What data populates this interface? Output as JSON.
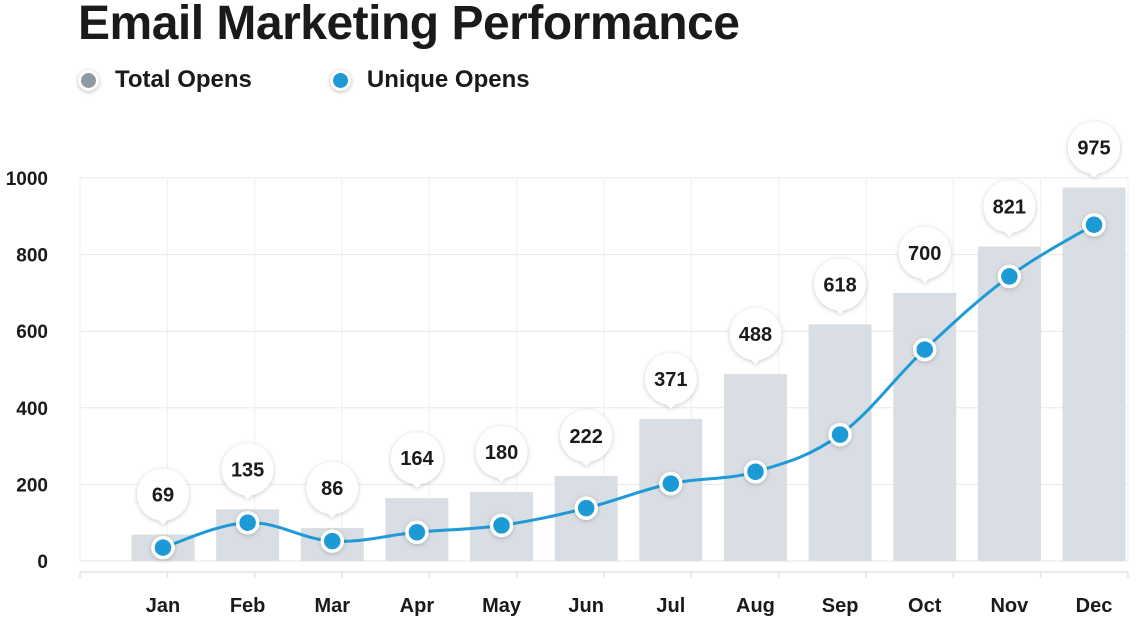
{
  "chart_data": {
    "type": "bar",
    "title": "Email Marketing Performance",
    "categories": [
      "Jan",
      "Feb",
      "Mar",
      "Apr",
      "May",
      "Jun",
      "Jul",
      "Aug",
      "Sep",
      "Oct",
      "Nov",
      "Dec"
    ],
    "series": [
      {
        "name": "Total Opens",
        "type": "bar",
        "color": "#d8dee3",
        "legend_color": "#8e9ba5",
        "values": [
          69,
          135,
          86,
          164,
          180,
          222,
          371,
          488,
          618,
          700,
          821,
          975
        ]
      },
      {
        "name": "Unique Opens",
        "type": "line",
        "color": "#1f9ad6",
        "values": [
          35,
          100,
          52,
          75,
          93,
          138,
          202,
          233,
          330,
          552,
          743,
          878
        ]
      }
    ],
    "data_labels": [
      "69",
      "135",
      "86",
      "164",
      "180",
      "222",
      "371",
      "488",
      "618",
      "700",
      "821",
      "975"
    ],
    "ylim": [
      0,
      1000
    ],
    "yticks": [
      "0",
      "200",
      "400",
      "600",
      "800",
      "1000"
    ],
    "xlabel": "",
    "ylabel": "",
    "grid": true,
    "legend_position": "top-left"
  }
}
